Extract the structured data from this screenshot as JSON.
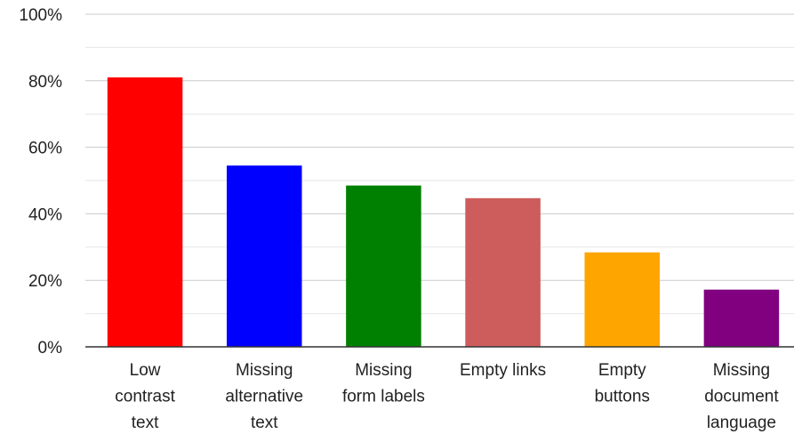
{
  "chart_data": {
    "type": "bar",
    "title": "",
    "xlabel": "",
    "ylabel": "",
    "ylim": [
      0,
      100
    ],
    "y_tick_values": [
      0,
      20,
      40,
      60,
      80,
      100
    ],
    "y_tick_labels": [
      "0%",
      "20%",
      "40%",
      "60%",
      "80%",
      "100%"
    ],
    "minor_gridlines": true,
    "legend": "none",
    "categories": [
      "Low contrast text",
      "Missing alternative text",
      "Missing form labels",
      "Empty links",
      "Empty buttons",
      "Missing document language"
    ],
    "category_label_lines": [
      [
        "Low",
        "contrast",
        "text"
      ],
      [
        "Missing",
        "alternative",
        "text"
      ],
      [
        "Missing",
        "form labels"
      ],
      [
        "Empty links"
      ],
      [
        "Empty",
        "buttons"
      ],
      [
        "Missing",
        "document",
        "language"
      ]
    ],
    "values": [
      81,
      54.5,
      48.5,
      44.7,
      28.4,
      17.2
    ],
    "colors": [
      "#ff0000",
      "#0000ff",
      "#008000",
      "#cd5c5c",
      "#ffa500",
      "#800080"
    ],
    "gridline_color": "#cccccc",
    "minor_gridline_color": "#e6e6e6",
    "axis_color": "#333333"
  }
}
